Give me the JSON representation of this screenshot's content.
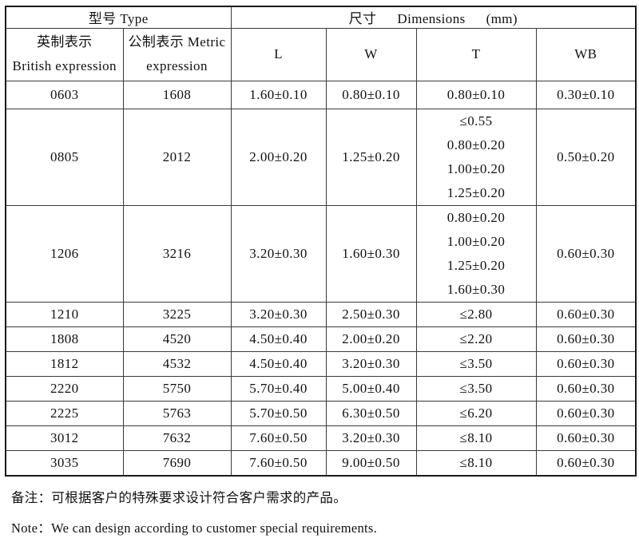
{
  "page": {
    "background_color": "#ffffff",
    "text_color": "#111111",
    "border_color": "#1a1a1a"
  },
  "table": {
    "header_row1": {
      "type_group": "型号 Type",
      "dim_cn": "尺寸",
      "dim_en": "Dimensions",
      "dim_unit": "(mm)"
    },
    "header_row2": {
      "british_cn": "英制表示",
      "british_en": "British expression",
      "metric_line1": "公制表示 Metric",
      "metric_line2": "expression",
      "l": "L",
      "w": "W",
      "t": "T",
      "wb": "WB"
    },
    "rows": [
      {
        "british": "0603",
        "metric": "1608",
        "l": "1.60±0.10",
        "w": "0.80±0.10",
        "t": [
          "0.80±0.10"
        ],
        "wb": "0.30±0.10"
      },
      {
        "british": "0805",
        "metric": "2012",
        "l": "2.00±0.20",
        "w": "1.25±0.20",
        "t": [
          "≤0.55",
          "0.80±0.20",
          "1.00±0.20",
          "1.25±0.20"
        ],
        "wb": "0.50±0.20"
      },
      {
        "british": "1206",
        "metric": "3216",
        "l": "3.20±0.30",
        "w": "1.60±0.30",
        "t": [
          "0.80±0.20",
          "1.00±0.20",
          "1.25±0.20",
          "1.60±0.30"
        ],
        "wb": "0.60±0.30"
      },
      {
        "british": "1210",
        "metric": "3225",
        "l": "3.20±0.30",
        "w": "2.50±0.30",
        "t": [
          "≤2.80"
        ],
        "wb": "0.60±0.30"
      },
      {
        "british": "1808",
        "metric": "4520",
        "l": "4.50±0.40",
        "w": "2.00±0.20",
        "t": [
          "≤2.20"
        ],
        "wb": "0.60±0.30"
      },
      {
        "british": "1812",
        "metric": "4532",
        "l": "4.50±0.40",
        "w": "3.20±0.30",
        "t": [
          "≤3.50"
        ],
        "wb": "0.60±0.30"
      },
      {
        "british": "2220",
        "metric": "5750",
        "l": "5.70±0.40",
        "w": "5.00±0.40",
        "t": [
          "≤3.50"
        ],
        "wb": "0.60±0.30"
      },
      {
        "british": "2225",
        "metric": "5763",
        "l": "5.70±0.50",
        "w": "6.30±0.50",
        "t": [
          "≤6.20"
        ],
        "wb": "0.60±0.30"
      },
      {
        "british": "3012",
        "metric": "7632",
        "l": "7.60±0.50",
        "w": "3.20±0.30",
        "t": [
          "≤8.10"
        ],
        "wb": "0.60±0.30"
      },
      {
        "british": "3035",
        "metric": "7690",
        "l": "7.60±0.50",
        "w": "9.00±0.50",
        "t": [
          "≤8.10"
        ],
        "wb": "0.60±0.30"
      }
    ]
  },
  "notes": {
    "cn": "备注：可根据客户的特殊要求设计符合客户需求的产品。",
    "en": "Note：We can design according to customer special requirements."
  }
}
